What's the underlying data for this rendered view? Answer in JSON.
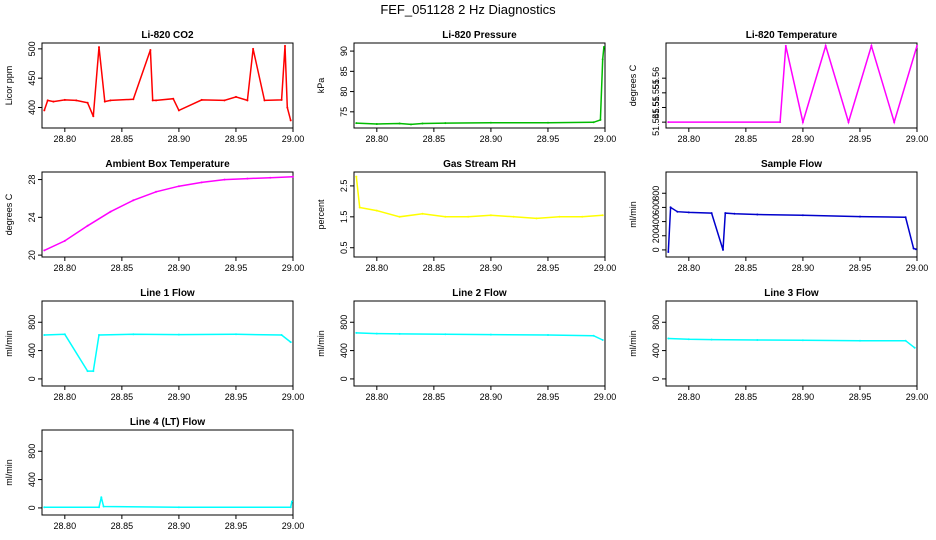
{
  "title": "FEF_051128  2 Hz Diagnostics",
  "chart_data": [
    {
      "type": "line",
      "title": "Li-820 CO2",
      "ylabel": "Licor ppm",
      "color": "#ff0000",
      "xlim": [
        28.78,
        29.0
      ],
      "ylim": [
        365,
        510
      ],
      "xticks": [
        "28.80",
        "28.85",
        "28.90",
        "28.95",
        "29.00"
      ],
      "yticks": [
        400,
        450,
        500
      ],
      "x": [
        28.782,
        28.785,
        28.79,
        28.8,
        28.81,
        28.82,
        28.825,
        28.83,
        28.835,
        28.84,
        28.86,
        28.875,
        28.877,
        28.88,
        28.895,
        28.9,
        28.92,
        28.94,
        28.95,
        28.96,
        28.965,
        28.975,
        28.99,
        28.993,
        28.995,
        28.998
      ],
      "values": [
        395,
        412,
        410,
        413,
        412,
        408,
        385,
        503,
        410,
        412,
        414,
        498,
        412,
        412,
        415,
        395,
        413,
        412,
        418,
        412,
        500,
        412,
        413,
        505,
        400,
        378
      ]
    },
    {
      "type": "line",
      "title": "Li-820 Pressure",
      "ylabel": "kPa",
      "color": "#00bb00",
      "xlim": [
        28.78,
        29.0
      ],
      "ylim": [
        71,
        92
      ],
      "xticks": [
        "28.80",
        "28.85",
        "28.90",
        "28.95",
        "29.00"
      ],
      "yticks": [
        75,
        80,
        85,
        90
      ],
      "x": [
        28.782,
        28.8,
        28.82,
        28.83,
        28.84,
        28.86,
        28.9,
        28.95,
        28.99,
        28.996,
        28.998,
        28.999
      ],
      "values": [
        72.2,
        72.0,
        72.1,
        71.9,
        72.1,
        72.2,
        72.3,
        72.3,
        72.4,
        73,
        88,
        91
      ]
    },
    {
      "type": "line",
      "title": "Li-820 Temperature",
      "ylabel": "degrees C",
      "color": "#ff00ff",
      "xlim": [
        28.78,
        29.0
      ],
      "ylim": [
        51.543,
        51.572
      ],
      "xticks": [
        "28.80",
        "28.85",
        "28.90",
        "28.95",
        "29.00"
      ],
      "yticks": [
        51.545,
        51.55,
        51.555,
        51.56
      ],
      "x": [
        28.782,
        28.88,
        28.885,
        28.9,
        28.92,
        28.94,
        28.96,
        28.98,
        29.0
      ],
      "values": [
        51.545,
        51.545,
        51.571,
        51.545,
        51.571,
        51.545,
        51.571,
        51.545,
        51.571
      ]
    },
    {
      "type": "line",
      "title": "Ambient Box Temperature",
      "ylabel": "degrees C",
      "color": "#ff00ff",
      "xlim": [
        28.78,
        29.0
      ],
      "ylim": [
        19.8,
        28.8
      ],
      "xticks": [
        "28.80",
        "28.85",
        "28.90",
        "28.95",
        "29.00"
      ],
      "yticks": [
        20,
        24,
        28
      ],
      "x": [
        28.782,
        28.8,
        28.82,
        28.84,
        28.86,
        28.88,
        28.9,
        28.92,
        28.94,
        28.96,
        28.98,
        29.0
      ],
      "values": [
        20.5,
        21.5,
        23.1,
        24.6,
        25.8,
        26.7,
        27.3,
        27.7,
        28.0,
        28.1,
        28.2,
        28.3
      ]
    },
    {
      "type": "line",
      "title": "Gas Stream RH",
      "ylabel": "percent",
      "color": "#ffff00",
      "xlim": [
        28.78,
        29.0
      ],
      "ylim": [
        0.2,
        2.95
      ],
      "xticks": [
        "28.80",
        "28.85",
        "28.90",
        "28.95",
        "29.00"
      ],
      "yticks": [
        0.5,
        1.5,
        2.5
      ],
      "x": [
        28.782,
        28.785,
        28.8,
        28.82,
        28.84,
        28.86,
        28.88,
        28.9,
        28.92,
        28.94,
        28.96,
        28.98,
        28.998
      ],
      "values": [
        2.8,
        1.8,
        1.7,
        1.5,
        1.6,
        1.5,
        1.5,
        1.55,
        1.5,
        1.45,
        1.5,
        1.5,
        1.55
      ]
    },
    {
      "type": "line",
      "title": "Sample Flow",
      "ylabel": "ml/min",
      "color": "#0000cc",
      "xlim": [
        28.78,
        29.0
      ],
      "ylim": [
        -100,
        1100
      ],
      "xticks": [
        "28.80",
        "28.85",
        "28.90",
        "28.95",
        "29.00"
      ],
      "yticks": [
        0,
        200,
        400,
        600,
        800
      ],
      "x": [
        28.782,
        28.784,
        28.79,
        28.8,
        28.82,
        28.83,
        28.832,
        28.84,
        28.86,
        28.9,
        28.95,
        28.99,
        28.997,
        28.999
      ],
      "values": [
        -30,
        600,
        540,
        530,
        520,
        0,
        520,
        510,
        500,
        490,
        470,
        460,
        20,
        10
      ]
    },
    {
      "type": "line",
      "title": "Line 1 Flow",
      "ylabel": "ml/min",
      "color": "#00ffff",
      "xlim": [
        28.78,
        29.0
      ],
      "ylim": [
        -100,
        1100
      ],
      "xticks": [
        "28.80",
        "28.85",
        "28.90",
        "28.95",
        "29.00"
      ],
      "yticks": [
        0,
        400,
        800
      ],
      "x": [
        28.782,
        28.8,
        28.82,
        28.825,
        28.83,
        28.86,
        28.9,
        28.95,
        28.99,
        28.998
      ],
      "values": [
        620,
        630,
        110,
        110,
        620,
        630,
        625,
        630,
        620,
        520
      ]
    },
    {
      "type": "line",
      "title": "Line 2 Flow",
      "ylabel": "ml/min",
      "color": "#00ffff",
      "xlim": [
        28.78,
        29.0
      ],
      "ylim": [
        -100,
        1100
      ],
      "xticks": [
        "28.80",
        "28.85",
        "28.90",
        "28.95",
        "29.00"
      ],
      "yticks": [
        0,
        400,
        800
      ],
      "x": [
        28.782,
        28.8,
        28.82,
        28.86,
        28.9,
        28.95,
        28.99,
        28.998
      ],
      "values": [
        650,
        640,
        635,
        630,
        625,
        620,
        610,
        550
      ]
    },
    {
      "type": "line",
      "title": "Line 3 Flow",
      "ylabel": "ml/min",
      "color": "#00ffff",
      "xlim": [
        28.78,
        29.0
      ],
      "ylim": [
        -100,
        1100
      ],
      "xticks": [
        "28.80",
        "28.85",
        "28.90",
        "28.95",
        "29.00"
      ],
      "yticks": [
        0,
        400,
        800
      ],
      "x": [
        28.782,
        28.8,
        28.82,
        28.86,
        28.9,
        28.95,
        28.99,
        28.998
      ],
      "values": [
        570,
        560,
        555,
        550,
        545,
        540,
        540,
        440
      ]
    },
    {
      "type": "line",
      "title": "Line 4 (LT) Flow",
      "ylabel": "ml/min",
      "color": "#00ffff",
      "xlim": [
        28.78,
        29.0
      ],
      "ylim": [
        -100,
        1100
      ],
      "xticks": [
        "28.80",
        "28.85",
        "28.90",
        "28.95",
        "29.00"
      ],
      "yticks": [
        0,
        400,
        800
      ],
      "x": [
        28.782,
        28.83,
        28.832,
        28.834,
        28.9,
        28.998,
        28.999
      ],
      "values": [
        10,
        10,
        150,
        20,
        10,
        10,
        90
      ]
    }
  ]
}
